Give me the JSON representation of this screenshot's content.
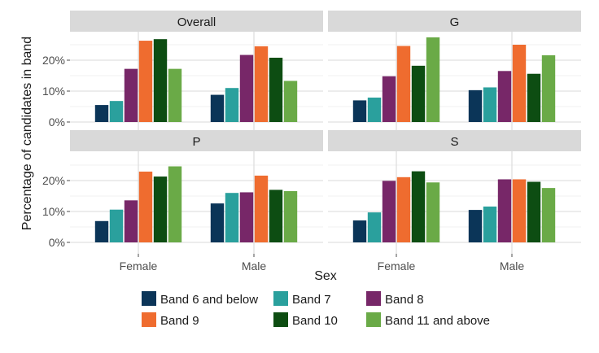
{
  "chart_data": {
    "type": "bar",
    "xlabel": "Sex",
    "ylabel": "Percentage of candidates in band",
    "categories": [
      "Female",
      "Male"
    ],
    "ylim": [
      0,
      30
    ],
    "y_ticks": [
      0,
      10,
      20
    ],
    "y_tick_labels": [
      "0%",
      "10%",
      "20%"
    ],
    "grid": true,
    "legend_position": "bottom",
    "bands": [
      {
        "name": "Band 6 and below",
        "color": "#0b3558"
      },
      {
        "name": "Band 7",
        "color": "#2aa09d"
      },
      {
        "name": "Band 8",
        "color": "#772768"
      },
      {
        "name": "Band 9",
        "color": "#ef6c2f"
      },
      {
        "name": "Band 10",
        "color": "#0d4d12"
      },
      {
        "name": "Band 11 and above",
        "color": "#6aaa47"
      }
    ],
    "panels": [
      {
        "title": "Overall",
        "values": {
          "Female": [
            5.5,
            6.8,
            17.2,
            26.3,
            26.8,
            17.2
          ],
          "Male": [
            8.8,
            11.0,
            21.7,
            24.5,
            20.8,
            13.3
          ]
        }
      },
      {
        "title": "G",
        "values": {
          "Female": [
            7.0,
            7.9,
            14.8,
            24.6,
            18.2,
            27.4
          ],
          "Male": [
            10.3,
            11.2,
            16.5,
            25.0,
            15.6,
            21.6
          ]
        }
      },
      {
        "title": "P",
        "values": {
          "Female": [
            6.9,
            10.6,
            13.6,
            22.9,
            21.3,
            24.6
          ],
          "Male": [
            12.6,
            16.0,
            16.2,
            21.6,
            17.0,
            16.6
          ]
        }
      },
      {
        "title": "S",
        "values": {
          "Female": [
            7.1,
            9.7,
            19.9,
            21.1,
            23.0,
            19.4
          ],
          "Male": [
            10.5,
            11.6,
            20.4,
            20.4,
            19.6,
            17.6
          ]
        }
      }
    ]
  }
}
